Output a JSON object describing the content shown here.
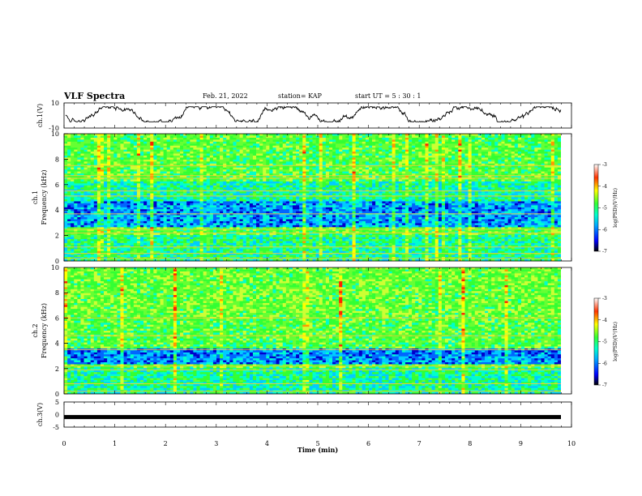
{
  "header": {
    "title": "VLF Spectra",
    "date": "Feb. 21, 2022",
    "station": "station= KAP",
    "start_ut": "start  UT =   5 : 30 : 1"
  },
  "chart_data": [
    {
      "type": "line",
      "panel": "ch1-waveform",
      "ylabel": "ch.1(V)",
      "ylim": [
        -10,
        10
      ],
      "yticks": [
        "10",
        "-10"
      ],
      "xlim": [
        0,
        10
      ],
      "color": "#000000",
      "envelope": "random-walk waveform, approx. -5 V to 7 V"
    },
    {
      "type": "heatmap",
      "panel": "ch1-spectrogram",
      "ylabel": "ch.1",
      "ylabel2": "Frequency (kHz)",
      "yticks": [
        "0",
        "2",
        "4",
        "6",
        "8",
        "10"
      ],
      "ylim": [
        0,
        10
      ],
      "xlim": [
        0,
        9.8
      ],
      "colorbar": {
        "label": "log(PSD)(V²/Hz)",
        "ticks": [
          "-3",
          "-4",
          "-5",
          "-6",
          "-7"
        ],
        "range": [
          -7,
          -3
        ]
      },
      "bands_khz": [
        0.2,
        0.6,
        1.1,
        2.2,
        2.5,
        3.7,
        5.1,
        5.5,
        6.5,
        6.7,
        7.5
      ]
    },
    {
      "type": "heatmap",
      "panel": "ch2-spectrogram",
      "ylabel": "ch.2",
      "ylabel2": "Frequency (kHz)",
      "yticks": [
        "0",
        "2",
        "4",
        "6",
        "8",
        "10"
      ],
      "ylim": [
        0,
        10
      ],
      "xlim": [
        0,
        9.8
      ],
      "colorbar": {
        "label": "log(PSD)(V²/Hz)",
        "ticks": [
          "-3",
          "-4",
          "-5",
          "-6",
          "-7"
        ],
        "range": [
          -7,
          -3
        ]
      },
      "bands_khz": [
        0.2,
        0.8,
        1.9,
        2.2,
        3.5,
        4.6,
        6.0
      ]
    },
    {
      "type": "line",
      "panel": "ch3-waveform",
      "ylabel": "ch.3(V)",
      "ylim": [
        -5,
        5
      ],
      "yticks": [
        "5",
        "0",
        "-5"
      ],
      "xlim": [
        0,
        10
      ],
      "constant_value": -1,
      "color": "#000000"
    }
  ],
  "x_axis": {
    "label": "Time  (min)",
    "ticks": [
      "0",
      "1",
      "2",
      "3",
      "4",
      "5",
      "6",
      "7",
      "8",
      "9",
      "10"
    ],
    "range": [
      0,
      10
    ]
  }
}
